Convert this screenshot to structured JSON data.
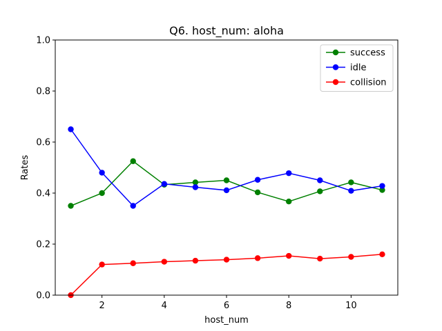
{
  "chart_data": {
    "type": "line",
    "title": "Q6. host_num: aloha",
    "xlabel": "host_num",
    "ylabel": "Rates",
    "xlim": [
      0.5,
      11.5
    ],
    "ylim": [
      0,
      1.0
    ],
    "xticks": [
      2,
      4,
      6,
      8,
      10
    ],
    "xtick_labels": [
      "2",
      "4",
      "6",
      "8",
      "10"
    ],
    "yticks": [
      0.0,
      0.2,
      0.4,
      0.6,
      0.8,
      1.0
    ],
    "ytick_labels": [
      "0.0",
      "0.2",
      "0.4",
      "0.6",
      "0.8",
      "1.0"
    ],
    "grid": false,
    "legend_position": "top-right",
    "x": [
      1,
      2,
      3,
      4,
      5,
      6,
      7,
      8,
      9,
      10,
      11
    ],
    "series": [
      {
        "name": "success",
        "color": "#008000",
        "values": [
          0.35,
          0.4,
          0.525,
          0.433,
          0.442,
          0.45,
          0.403,
          0.367,
          0.407,
          0.442,
          0.412
        ]
      },
      {
        "name": "idle",
        "color": "#0000ff",
        "values": [
          0.65,
          0.48,
          0.35,
          0.436,
          0.423,
          0.411,
          0.452,
          0.478,
          0.45,
          0.409,
          0.428
        ]
      },
      {
        "name": "collision",
        "color": "#ff0000",
        "values": [
          0.0,
          0.12,
          0.125,
          0.131,
          0.135,
          0.139,
          0.145,
          0.154,
          0.143,
          0.15,
          0.16
        ]
      }
    ]
  }
}
